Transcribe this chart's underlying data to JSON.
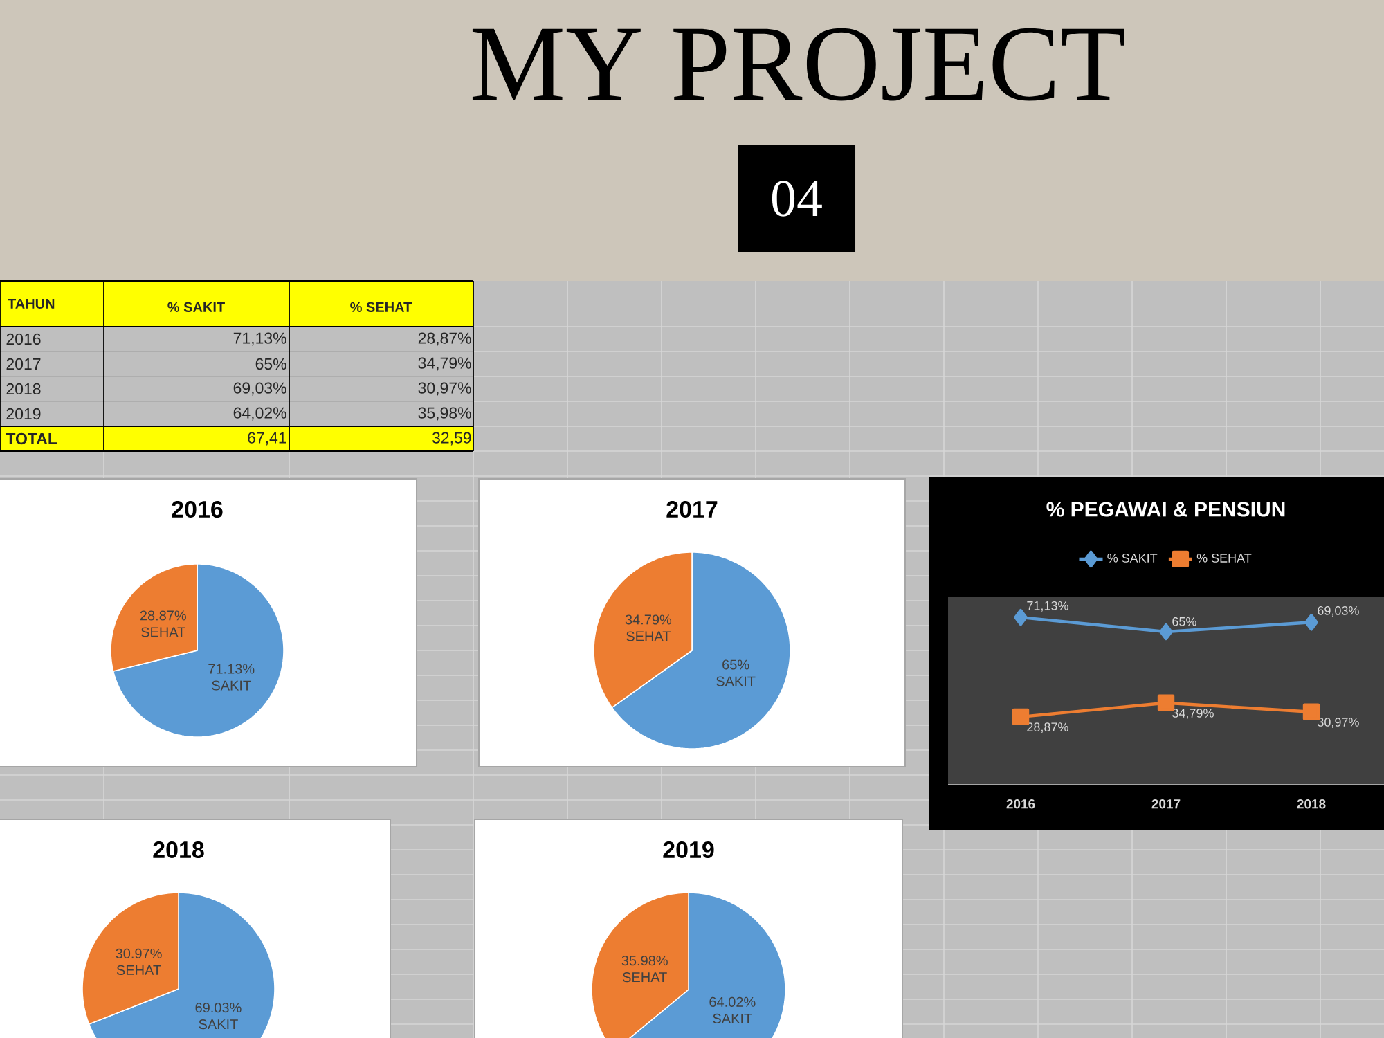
{
  "chart_data": [
    {
      "type": "other",
      "title": "MY PROJECT",
      "subtitle": "04"
    },
    {
      "type": "heatmap",
      "ylabel": "TAHUN",
      "categories": [
        "% SAKIT",
        "% SEHAT"
      ],
      "y_categories": [
        "2016",
        "2017",
        "2018",
        "2019",
        "TOTAL"
      ],
      "cells": [
        [
          null,
          null
        ],
        [
          null,
          null
        ],
        [
          null,
          null
        ],
        [
          null,
          null
        ],
        [
          null,
          null
        ]
      ],
      "cell_labels": [
        [
          "71,13%",
          "28,87%"
        ],
        [
          "65%",
          "34,79%"
        ],
        [
          "69,03%",
          "30,97%"
        ],
        [
          "64,02%",
          "35,98%"
        ],
        [
          "67,41",
          "32,59"
        ]
      ],
      "color": "#ffff00",
      "colors": [
        "#bfbfbf",
        "#bfbfbf",
        "#bfbfbf",
        "#bfbfbf",
        "#ffff00"
      ]
    },
    {
      "type": "pie",
      "title": "2016",
      "categories": [
        "SAKIT",
        "SEHAT"
      ],
      "values": [
        71.13,
        28.87
      ],
      "colors": [
        "#5b9bd5",
        "#ed7d31"
      ],
      "value_labels": [
        "71.13%",
        "28.87%"
      ]
    },
    {
      "type": "pie",
      "title": "2017",
      "categories": [
        "SAKIT",
        "SEHAT"
      ],
      "values": [
        65,
        34.79
      ],
      "colors": [
        "#5b9bd5",
        "#ed7d31"
      ],
      "value_labels": [
        "65%",
        "34.79%"
      ]
    },
    {
      "type": "line",
      "title": "% PEGAWAI & PENSIUN",
      "categories": [
        "2016",
        "2017",
        "2018"
      ],
      "series": [
        {
          "name": "% SAKIT",
          "color": "#5b9bd5",
          "marker": "diamond",
          "values": [
            71.13,
            65,
            69.03
          ],
          "value_labels": [
            "71,13%",
            "65%",
            "69,03%"
          ]
        },
        {
          "name": "% SEHAT",
          "color": "#ed7d31",
          "marker": "square",
          "values": [
            28.87,
            34.79,
            30.97
          ],
          "value_labels": [
            "28,87%",
            "34,79%",
            "30,97%"
          ]
        }
      ],
      "ylim": [
        0,
        80
      ],
      "tick_labels": "x",
      "legend": "top"
    },
    {
      "type": "pie",
      "title": "2018",
      "categories": [
        "SAKIT",
        "SEHAT"
      ],
      "values": [
        69.03,
        30.97
      ],
      "colors": [
        "#5b9bd5",
        "#ed7d31"
      ],
      "value_labels": [
        "69.03%",
        "30.97%"
      ]
    },
    {
      "type": "pie",
      "title": "2019",
      "categories": [
        "SAKIT",
        "SEHAT"
      ],
      "values": [
        64.02,
        35.98
      ],
      "colors": [
        "#5b9bd5",
        "#ed7d31"
      ],
      "value_labels": [
        "64.02%",
        "35.98%"
      ]
    }
  ]
}
